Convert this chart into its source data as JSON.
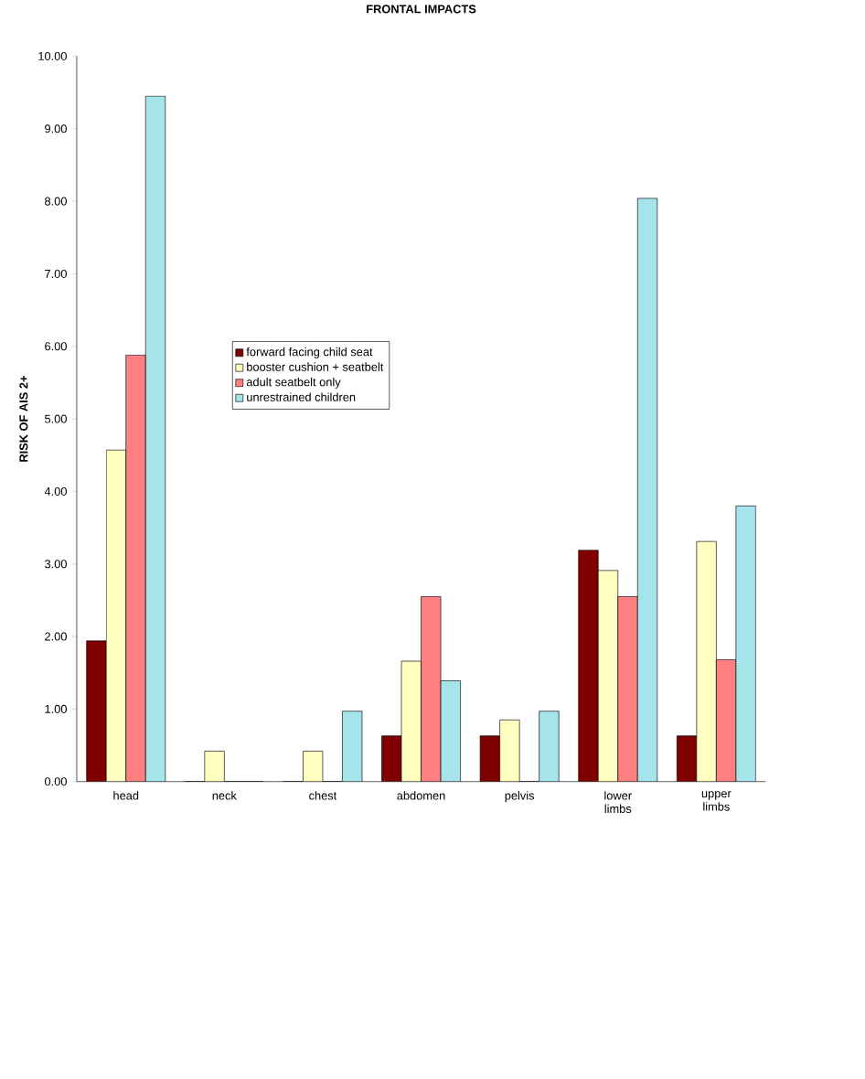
{
  "chart_data": {
    "type": "bar",
    "title": "FRONTAL IMPACTS",
    "ylabel": "RISK OF AIS 2+",
    "categories": [
      "head",
      "neck",
      "chest",
      "abdomen",
      "pelvis",
      "lower limbs",
      "upper limbs"
    ],
    "series": [
      {
        "name": "forward facing child seat",
        "color": "#800000",
        "values": [
          1.94,
          0,
          0,
          0.63,
          0.63,
          3.19,
          0.63
        ]
      },
      {
        "name": "booster cushion + seatbelt",
        "color": "#ffffc0",
        "values": [
          4.57,
          0.42,
          0.42,
          1.66,
          0.85,
          2.91,
          3.31
        ]
      },
      {
        "name": "adult seatbelt only",
        "color": "#ff8080",
        "values": [
          5.88,
          0,
          0,
          2.55,
          0,
          2.55,
          1.68
        ]
      },
      {
        "name": "unrestrained children",
        "color": "#a6e4ec",
        "values": [
          9.45,
          0,
          0.97,
          1.39,
          0.97,
          8.04,
          3.8
        ]
      }
    ],
    "ylim": [
      0,
      10
    ],
    "yticks": [
      {
        "value": 0,
        "label": "0.00"
      },
      {
        "value": 1,
        "label": "1.00"
      },
      {
        "value": 2,
        "label": "2.00"
      },
      {
        "value": 3,
        "label": "3.00"
      },
      {
        "value": 4,
        "label": "4.00"
      },
      {
        "value": 5,
        "label": "5.00"
      },
      {
        "value": 6,
        "label": "6.00"
      },
      {
        "value": 7,
        "label": "7.00"
      },
      {
        "value": 8,
        "label": "8.00"
      },
      {
        "value": 9,
        "label": "9.00"
      },
      {
        "value": 10,
        "label": "10.00"
      }
    ],
    "grid": false,
    "legend": "center"
  }
}
